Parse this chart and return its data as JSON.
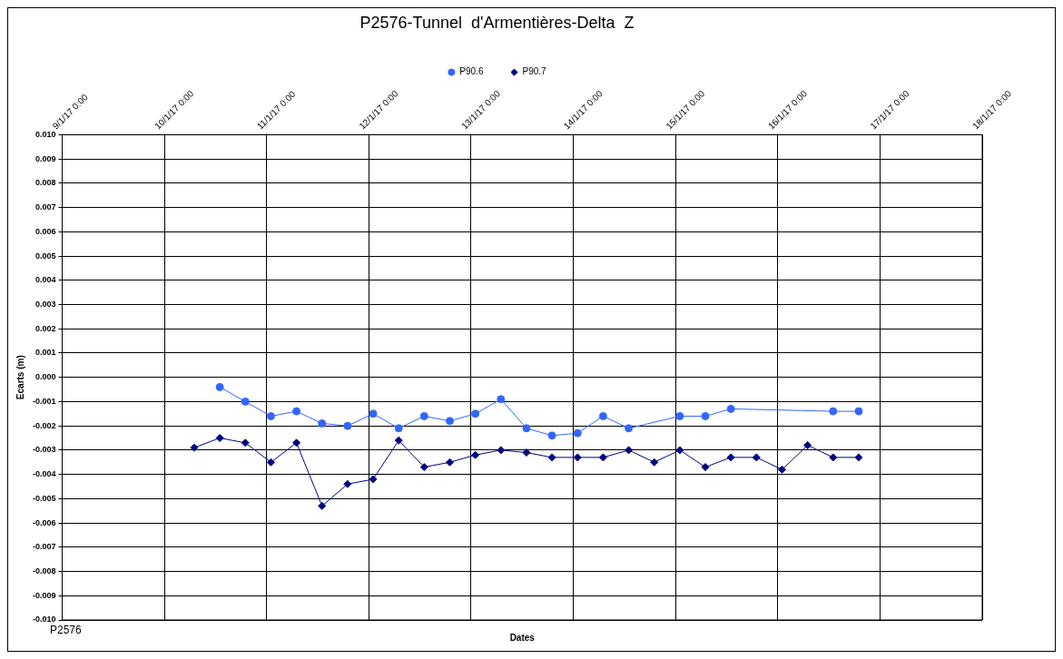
{
  "chart_data": {
    "type": "line",
    "title": "P2576-Tunnel  d'Armentières-Delta  Z",
    "xlabel": "Dates",
    "ylabel": "Ecarts (m)",
    "annotations": [
      "P2576"
    ],
    "legend": "top",
    "grid": true,
    "xlim": [
      "--01-09T00:00",
      "--01-18T00:00"
    ],
    "xticks": [
      {
        "value": "--01-09T00:00",
        "label": "9/1/17 0:00"
      },
      {
        "value": "--01-10T00:00",
        "label": "10/1/17 0:00"
      },
      {
        "value": "--01-11T00:00",
        "label": "11/1/17 0:00"
      },
      {
        "value": "--01-12T00:00",
        "label": "12/1/17 0:00"
      },
      {
        "value": "--01-13T00:00",
        "label": "13/1/17 0:00"
      },
      {
        "value": "--01-14T00:00",
        "label": "14/1/17 0:00"
      },
      {
        "value": "--01-15T00:00",
        "label": "15/1/17 0:00"
      },
      {
        "value": "--01-16T00:00",
        "label": "16/1/17 0:00"
      },
      {
        "value": "--01-17T00:00",
        "label": "17/1/17 0:00"
      },
      {
        "value": "--01-18T00:00",
        "label": "18/1/17 0:00"
      }
    ],
    "ylim": [
      -0.01,
      0.01
    ],
    "yticks": [
      {
        "value": 0.01,
        "label": "0.010"
      },
      {
        "value": 0.009,
        "label": "0.009"
      },
      {
        "value": 0.008,
        "label": "0.008"
      },
      {
        "value": 0.007,
        "label": "0.007"
      },
      {
        "value": 0.006,
        "label": "0.006"
      },
      {
        "value": 0.005,
        "label": "0.005"
      },
      {
        "value": 0.004,
        "label": "0.004"
      },
      {
        "value": 0.003,
        "label": "0.003"
      },
      {
        "value": 0.002,
        "label": "0.002"
      },
      {
        "value": 0.001,
        "label": "0.001"
      },
      {
        "value": 0,
        "label": "0.000"
      },
      {
        "value": -0.001,
        "label": "-0.001"
      },
      {
        "value": -0.002,
        "label": "-0.002"
      },
      {
        "value": -0.003,
        "label": "-0.003"
      },
      {
        "value": -0.004,
        "label": "-0.004"
      },
      {
        "value": -0.005,
        "label": "-0.005"
      },
      {
        "value": -0.006,
        "label": "-0.006"
      },
      {
        "value": -0.007,
        "label": "-0.007"
      },
      {
        "value": -0.008,
        "label": "-0.008"
      },
      {
        "value": -0.009,
        "label": "-0.009"
      },
      {
        "value": -0.01,
        "label": "-0.010"
      }
    ],
    "series": [
      {
        "name": "P90.6",
        "color": "#3366ff",
        "marker": "circle",
        "x": [
          "--01-10T13:00",
          "--01-10T19:00",
          "--01-11T01:00",
          "--01-11T07:00",
          "--01-11T13:00",
          "--01-11T19:00",
          "--01-12T01:00",
          "--01-12T07:00",
          "--01-12T13:00",
          "--01-12T19:00",
          "--01-13T01:00",
          "--01-13T07:00",
          "--01-13T13:00",
          "--01-13T19:00",
          "--01-14T01:00",
          "--01-14T07:00",
          "--01-14T13:00",
          "--01-15T01:00",
          "--01-15T07:00",
          "--01-15T13:00",
          "--01-16T13:00",
          "--01-16T19:00"
        ],
        "values": [
          -0.0004,
          -0.001,
          -0.0016,
          -0.0014,
          -0.0019,
          -0.002,
          -0.0015,
          -0.0021,
          -0.0016,
          -0.0018,
          -0.0015,
          -0.0009,
          -0.0021,
          -0.0024,
          -0.0023,
          -0.0016,
          -0.0021,
          -0.0016,
          -0.0016,
          -0.0013,
          -0.0014,
          -0.0014
        ]
      },
      {
        "name": "P90.7",
        "color": "#000080",
        "marker": "diamond",
        "x": [
          "--01-10T07:00",
          "--01-10T13:00",
          "--01-10T19:00",
          "--01-11T01:00",
          "--01-11T07:00",
          "--01-11T13:00",
          "--01-11T19:00",
          "--01-12T01:00",
          "--01-12T07:00",
          "--01-12T13:00",
          "--01-12T19:00",
          "--01-13T01:00",
          "--01-13T07:00",
          "--01-13T13:00",
          "--01-13T19:00",
          "--01-14T01:00",
          "--01-14T07:00",
          "--01-14T13:00",
          "--01-14T19:00",
          "--01-15T01:00",
          "--01-15T07:00",
          "--01-15T13:00",
          "--01-15T19:00",
          "--01-16T01:00",
          "--01-16T07:00",
          "--01-16T13:00",
          "--01-16T19:00"
        ],
        "values": [
          -0.0029,
          -0.0025,
          -0.0027,
          -0.0035,
          -0.0027,
          -0.0053,
          -0.0044,
          -0.0042,
          -0.0026,
          -0.0037,
          -0.0035,
          -0.0032,
          -0.003,
          -0.0031,
          -0.0033,
          -0.0033,
          -0.0033,
          -0.003,
          -0.0035,
          -0.003,
          -0.0037,
          -0.0033,
          -0.0033,
          -0.0038,
          -0.0028,
          -0.0033,
          -0.0033
        ]
      }
    ]
  }
}
